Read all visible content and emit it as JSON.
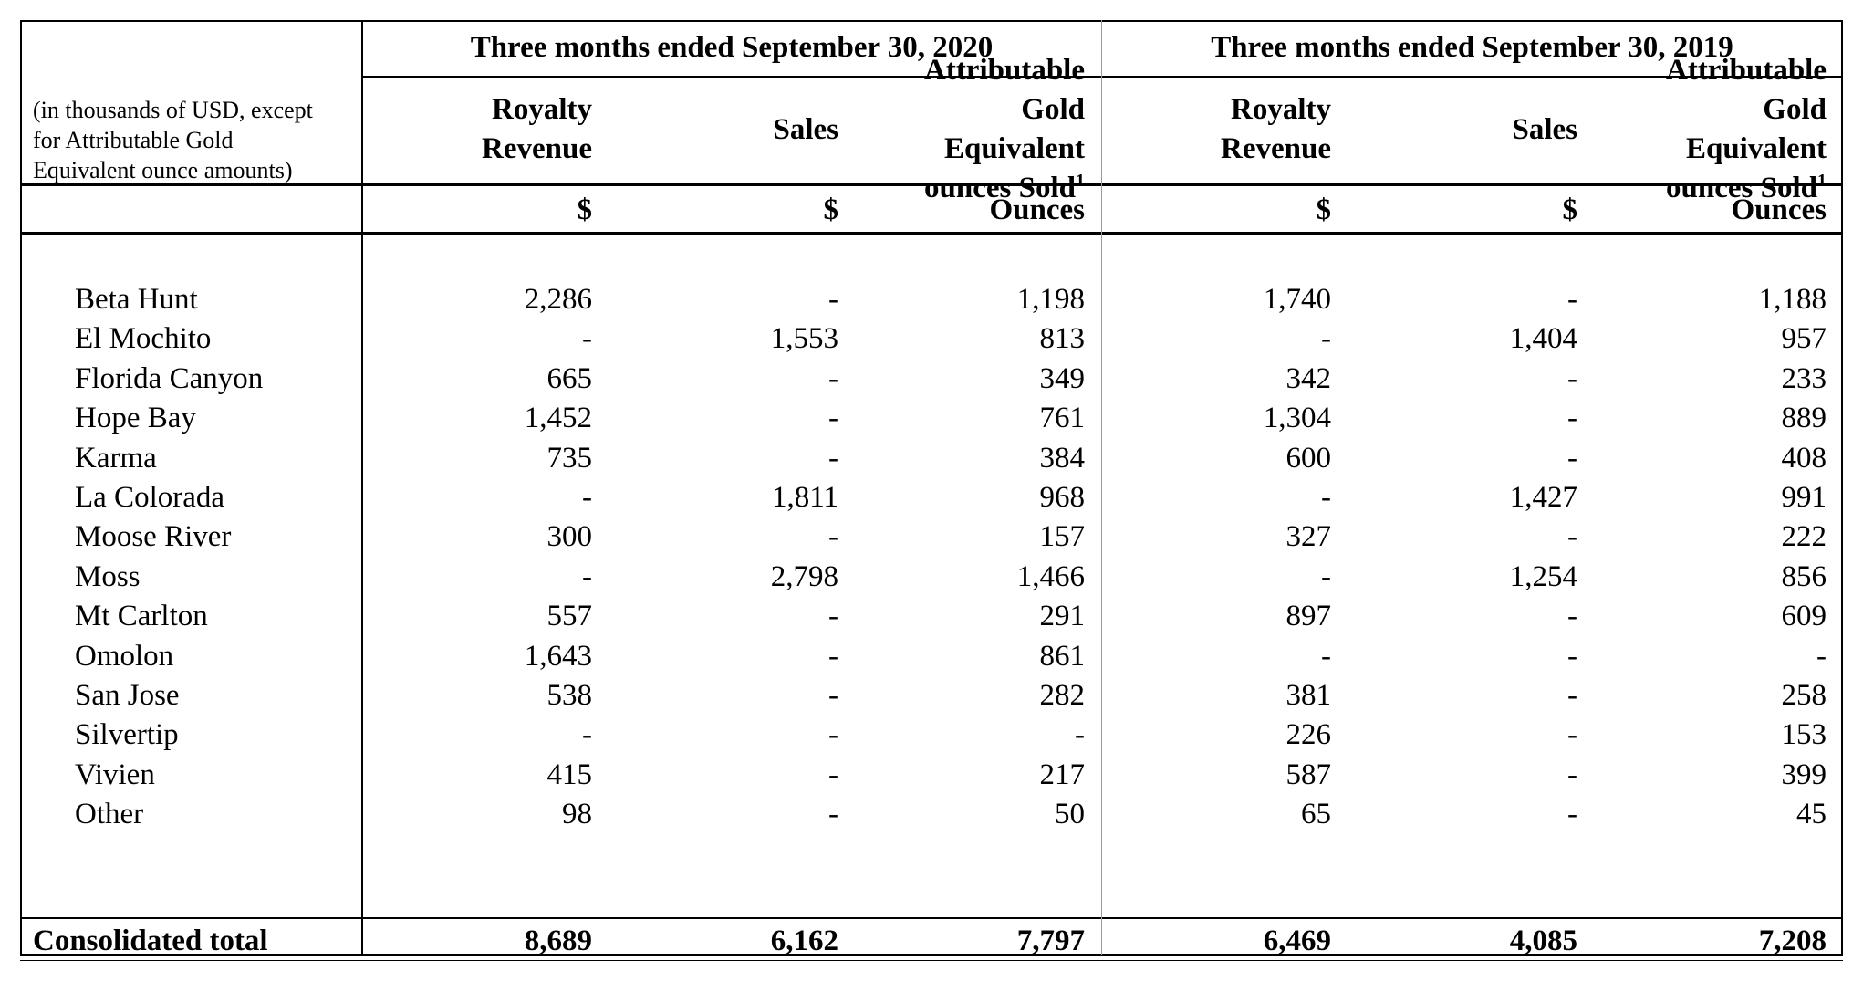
{
  "table": {
    "units_note": "(in thousands of USD, except for Attributable Gold Equivalent ounce amounts)",
    "periods": [
      {
        "label": "Three months ended September 30, 2020",
        "columns": [
          {
            "header_lines": [
              "Royalty",
              "Revenue"
            ],
            "superscript": "",
            "unit": "$"
          },
          {
            "header_lines": [
              "Sales"
            ],
            "superscript": "",
            "unit": "$"
          },
          {
            "header_lines": [
              "Attributable",
              "Gold",
              "Equivalent",
              "ounces Sold"
            ],
            "superscript": "1",
            "unit": "Ounces"
          }
        ]
      },
      {
        "label": "Three months ended September 30, 2019",
        "columns": [
          {
            "header_lines": [
              "Royalty",
              "Revenue"
            ],
            "superscript": "",
            "unit": "$"
          },
          {
            "header_lines": [
              "Sales"
            ],
            "superscript": "",
            "unit": "$"
          },
          {
            "header_lines": [
              "Attributable",
              "Gold",
              "Equivalent",
              "ounces Sold"
            ],
            "superscript": "1",
            "unit": "Ounces"
          }
        ]
      }
    ],
    "rows": [
      {
        "name": "Beta Hunt",
        "values": [
          "2,286",
          "-",
          "1,198",
          "1,740",
          "-",
          "1,188"
        ]
      },
      {
        "name": "El Mochito",
        "values": [
          "-",
          "1,553",
          "813",
          "-",
          "1,404",
          "957"
        ]
      },
      {
        "name": "Florida Canyon",
        "values": [
          "665",
          "-",
          "349",
          "342",
          "-",
          "233"
        ]
      },
      {
        "name": "Hope Bay",
        "values": [
          "1,452",
          "-",
          "761",
          "1,304",
          "-",
          "889"
        ]
      },
      {
        "name": "Karma",
        "values": [
          "735",
          "-",
          "384",
          "600",
          "-",
          "408"
        ]
      },
      {
        "name": "La Colorada",
        "values": [
          "-",
          "1,811",
          "968",
          "-",
          "1,427",
          "991"
        ]
      },
      {
        "name": "Moose River",
        "values": [
          "300",
          "-",
          "157",
          "327",
          "-",
          "222"
        ]
      },
      {
        "name": "Moss",
        "values": [
          "-",
          "2,798",
          "1,466",
          "-",
          "1,254",
          "856"
        ]
      },
      {
        "name": "Mt Carlton",
        "values": [
          "557",
          "-",
          "291",
          "897",
          "-",
          "609"
        ]
      },
      {
        "name": "Omolon",
        "values": [
          "1,643",
          "-",
          "861",
          "-",
          "-",
          "-"
        ]
      },
      {
        "name": "San Jose",
        "values": [
          "538",
          "-",
          "282",
          "381",
          "-",
          "258"
        ]
      },
      {
        "name": "Silvertip",
        "values": [
          "-",
          "-",
          "-",
          "226",
          "-",
          "153"
        ]
      },
      {
        "name": "Vivien",
        "values": [
          "415",
          "-",
          "217",
          "587",
          "-",
          "399"
        ]
      },
      {
        "name": "Other",
        "values": [
          "98",
          "-",
          "50",
          "65",
          "-",
          "45"
        ]
      }
    ],
    "total": {
      "name": "Consolidated total",
      "values": [
        "8,689",
        "6,162",
        "7,797",
        "6,469",
        "4,085",
        "7,208"
      ]
    }
  }
}
